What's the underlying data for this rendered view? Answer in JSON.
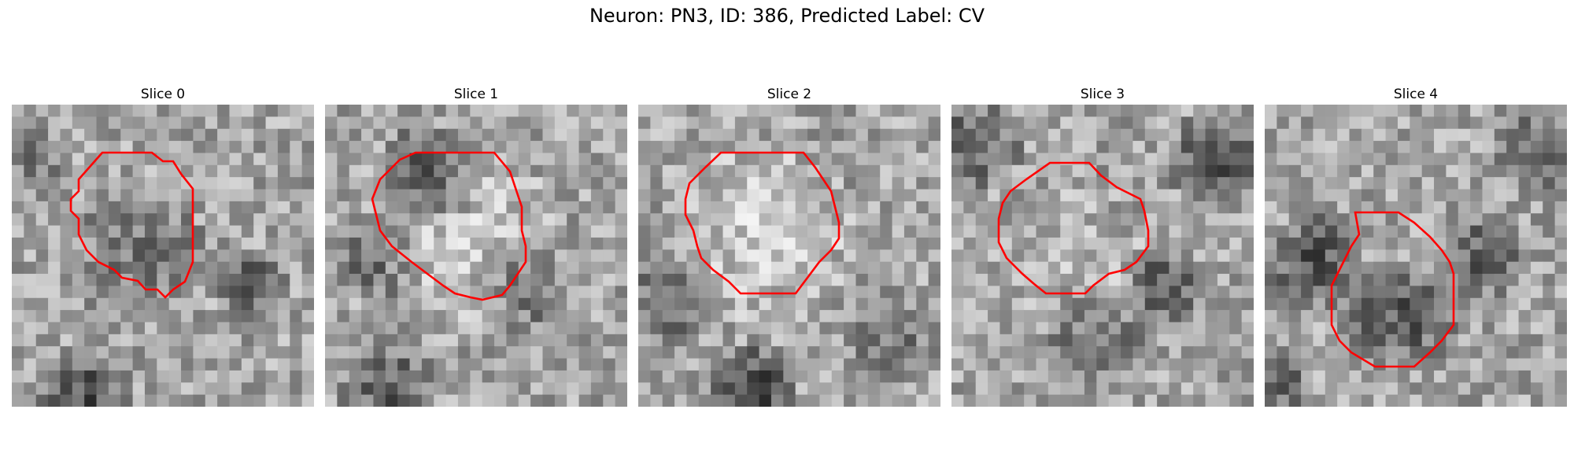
{
  "figure": {
    "title": "Neuron: PN3, ID: 386, Predicted Label: CV"
  },
  "panels": [
    {
      "title": "Slice 0",
      "outline_color": "#ff0000"
    },
    {
      "title": "Slice 1",
      "outline_color": "#ff0000"
    },
    {
      "title": "Slice 2",
      "outline_color": "#ff0000"
    },
    {
      "title": "Slice 3",
      "outline_color": "#ff0000"
    },
    {
      "title": "Slice 4",
      "outline_color": "#ff0000"
    }
  ]
}
